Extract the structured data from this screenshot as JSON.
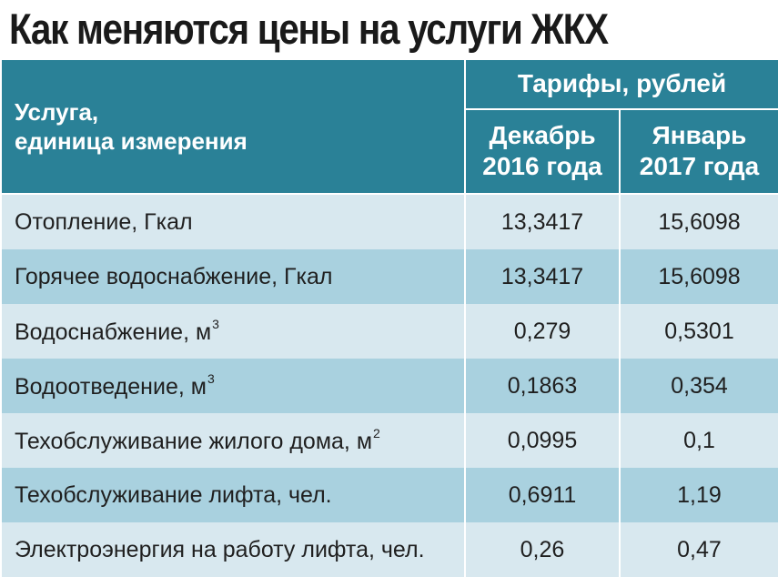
{
  "title": "Как меняются цены на услуги ЖКХ",
  "header": {
    "service_line1": "Услуга,",
    "service_line2": "единица измерения",
    "tariffs": "Тарифы, рублей",
    "dec_line1": "Декабрь",
    "dec_line2": "2016 года",
    "jan_line1": "Январь",
    "jan_line2": "2017 года"
  },
  "rows": [
    {
      "service": "Отопление, Гкал",
      "exp": "",
      "dec": "13,3417",
      "jan": "15,6098"
    },
    {
      "service": "Горячее водоснабжение, Гкал",
      "exp": "",
      "dec": "13,3417",
      "jan": "15,6098"
    },
    {
      "service": "Водоснабжение, м",
      "exp": "3",
      "dec": "0,279",
      "jan": "0,5301"
    },
    {
      "service": "Водоотведение, м",
      "exp": "3",
      "dec": "0,1863",
      "jan": "0,354"
    },
    {
      "service": "Техобслуживание жилого дома, м",
      "exp": "2",
      "dec": "0,0995",
      "jan": "0,1"
    },
    {
      "service": "Техобслуживание лифта, чел.",
      "exp": "",
      "dec": "0,6911",
      "jan": "1,19"
    },
    {
      "service": "Электроэнергия на работу лифта, чел.",
      "exp": "",
      "dec": "0,26",
      "jan": "0,47"
    }
  ],
  "colors": {
    "header_bg": "#2a8197",
    "row_light": "#d8e8ef",
    "row_dark": "#a9d1df"
  }
}
